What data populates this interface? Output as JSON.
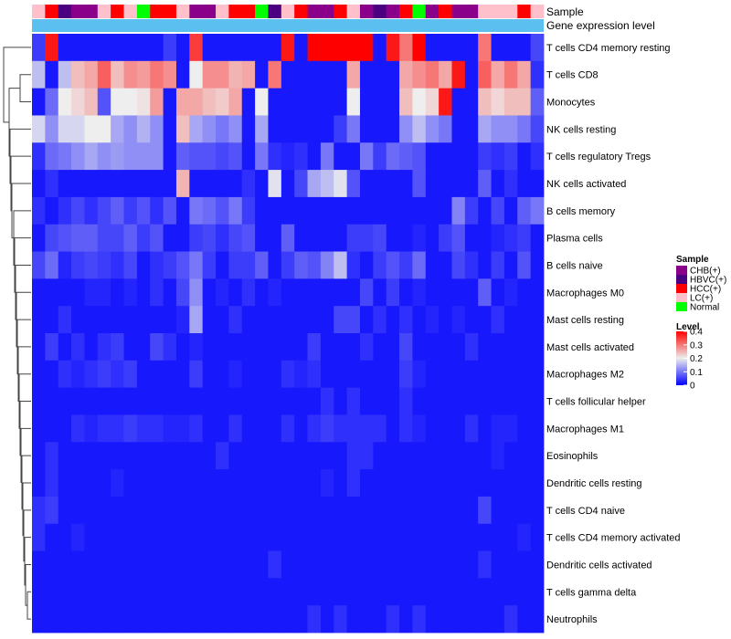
{
  "chart_data": {
    "type": "heatmap",
    "title": "",
    "annotation_tracks": [
      "Sample",
      "Gene expression level"
    ],
    "row_labels": [
      "T cells CD4 memory resting",
      "T cells CD8",
      "Monocytes",
      "NK cells resting",
      "T cells regulatory  Tregs",
      "NK cells activated",
      "B cells memory",
      "Plasma cells",
      "B cells naive",
      "Macrophages M0",
      "Mast cells resting",
      "Mast cells activated",
      "Macrophages M2",
      "T cells follicular helper",
      "Macrophages M1",
      "Eosinophils",
      "Dendritic cells resting",
      "T cells CD4 naive",
      "T cells CD4 memory activated",
      "Dendritic cells activated",
      "T cells gamma delta",
      "Neutrophils"
    ],
    "sample_groups": [
      "LC(+)",
      "HCC(+)",
      "HBVC(+)",
      "CHB(+)",
      "CHB(+)",
      "LC(+)",
      "HCC(+)",
      "LC(+)",
      "Normal",
      "HCC(+)",
      "HCC(+)",
      "LC(+)",
      "CHB(+)",
      "CHB(+)",
      "LC(+)",
      "HCC(+)",
      "HCC(+)",
      "Normal",
      "HBVC(+)",
      "LC(+)",
      "HCC(+)",
      "CHB(+)",
      "CHB(+)",
      "HCC(+)",
      "LC(+)",
      "CHB(+)",
      "HBVC(+)",
      "CHB(+)",
      "HCC(+)",
      "Normal",
      "CHB(+)",
      "HCC(+)",
      "CHB(+)",
      "CHB(+)",
      "LC(+)",
      "LC(+)",
      "LC(+)",
      "HCC(+)",
      "LC(+)"
    ],
    "values": [
      [
        0.05,
        0.38,
        0.02,
        0.02,
        0.02,
        0.02,
        0.02,
        0.02,
        0.02,
        0.02,
        0.05,
        0.02,
        0.35,
        0.02,
        0.02,
        0.02,
        0.02,
        0.02,
        0.02,
        0.38,
        0.02,
        0.4,
        0.4,
        0.4,
        0.4,
        0.4,
        0.02,
        0.38,
        0.3,
        0.4,
        0.02,
        0.02,
        0.02,
        0.02,
        0.3,
        0.02,
        0.02,
        0.02,
        0.06
      ],
      [
        0.16,
        0.02,
        0.16,
        0.24,
        0.26,
        0.32,
        0.24,
        0.28,
        0.27,
        0.3,
        0.28,
        0.02,
        0.2,
        0.28,
        0.28,
        0.25,
        0.26,
        0.02,
        0.3,
        0.02,
        0.02,
        0.02,
        0.02,
        0.02,
        0.26,
        0.02,
        0.02,
        0.02,
        0.26,
        0.28,
        0.3,
        0.26,
        0.38,
        0.02,
        0.32,
        0.26,
        0.3,
        0.26,
        0.04
      ],
      [
        0.02,
        0.09,
        0.2,
        0.22,
        0.24,
        0.07,
        0.2,
        0.2,
        0.21,
        0.27,
        0.02,
        0.26,
        0.26,
        0.24,
        0.23,
        0.26,
        0.02,
        0.2,
        0.02,
        0.02,
        0.02,
        0.02,
        0.02,
        0.02,
        0.2,
        0.02,
        0.02,
        0.02,
        0.24,
        0.2,
        0.22,
        0.38,
        0.02,
        0.02,
        0.24,
        0.22,
        0.24,
        0.24,
        0.08
      ],
      [
        0.18,
        0.12,
        0.18,
        0.18,
        0.2,
        0.2,
        0.14,
        0.12,
        0.15,
        0.12,
        0.02,
        0.24,
        0.14,
        0.12,
        0.1,
        0.12,
        0.02,
        0.14,
        0.02,
        0.02,
        0.02,
        0.02,
        0.02,
        0.05,
        0.1,
        0.02,
        0.02,
        0.02,
        0.12,
        0.16,
        0.12,
        0.1,
        0.02,
        0.02,
        0.14,
        0.12,
        0.12,
        0.1,
        0.06
      ],
      [
        0.04,
        0.09,
        0.1,
        0.12,
        0.14,
        0.12,
        0.13,
        0.12,
        0.12,
        0.12,
        0.02,
        0.08,
        0.07,
        0.07,
        0.06,
        0.07,
        0.02,
        0.1,
        0.04,
        0.03,
        0.04,
        0.02,
        0.1,
        0.02,
        0.02,
        0.1,
        0.05,
        0.09,
        0.08,
        0.07,
        0.02,
        0.02,
        0.02,
        0.02,
        0.05,
        0.04,
        0.05,
        0.02,
        0.04
      ],
      [
        0.02,
        0.04,
        0.02,
        0.02,
        0.02,
        0.02,
        0.02,
        0.02,
        0.02,
        0.02,
        0.02,
        0.25,
        0.02,
        0.02,
        0.02,
        0.02,
        0.04,
        0.02,
        0.19,
        0.02,
        0.06,
        0.14,
        0.16,
        0.19,
        0.07,
        0.02,
        0.02,
        0.02,
        0.02,
        0.07,
        0.02,
        0.02,
        0.02,
        0.02,
        0.08,
        0.02,
        0.04,
        0.02,
        0.02
      ],
      [
        0.04,
        0.02,
        0.04,
        0.06,
        0.04,
        0.06,
        0.08,
        0.05,
        0.07,
        0.04,
        0.07,
        0.02,
        0.1,
        0.09,
        0.07,
        0.1,
        0.05,
        0.02,
        0.02,
        0.02,
        0.02,
        0.02,
        0.02,
        0.02,
        0.02,
        0.02,
        0.02,
        0.02,
        0.02,
        0.02,
        0.02,
        0.02,
        0.11,
        0.05,
        0.02,
        0.06,
        0.02,
        0.08,
        0.1
      ],
      [
        0.02,
        0.06,
        0.07,
        0.08,
        0.08,
        0.06,
        0.06,
        0.08,
        0.05,
        0.07,
        0.02,
        0.02,
        0.05,
        0.06,
        0.04,
        0.06,
        0.07,
        0.02,
        0.02,
        0.08,
        0.02,
        0.02,
        0.02,
        0.02,
        0.05,
        0.05,
        0.06,
        0.02,
        0.02,
        0.03,
        0.02,
        0.05,
        0.07,
        0.02,
        0.02,
        0.03,
        0.04,
        0.05,
        0.02
      ],
      [
        0.06,
        0.09,
        0.03,
        0.05,
        0.06,
        0.05,
        0.04,
        0.06,
        0.02,
        0.04,
        0.05,
        0.07,
        0.1,
        0.05,
        0.02,
        0.05,
        0.05,
        0.08,
        0.02,
        0.05,
        0.08,
        0.07,
        0.11,
        0.16,
        0.04,
        0.02,
        0.05,
        0.07,
        0.05,
        0.09,
        0.02,
        0.02,
        0.06,
        0.04,
        0.02,
        0.05,
        0.02,
        0.07,
        0.02
      ],
      [
        0.02,
        0.02,
        0.02,
        0.02,
        0.03,
        0.03,
        0.02,
        0.03,
        0.02,
        0.04,
        0.02,
        0.06,
        0.12,
        0.02,
        0.03,
        0.02,
        0.04,
        0.02,
        0.03,
        0.02,
        0.02,
        0.02,
        0.02,
        0.02,
        0.02,
        0.06,
        0.02,
        0.05,
        0.02,
        0.03,
        0.02,
        0.02,
        0.02,
        0.02,
        0.08,
        0.02,
        0.03,
        0.02,
        0.02
      ],
      [
        0.02,
        0.02,
        0.04,
        0.02,
        0.02,
        0.02,
        0.02,
        0.02,
        0.02,
        0.02,
        0.02,
        0.03,
        0.14,
        0.02,
        0.02,
        0.04,
        0.02,
        0.02,
        0.02,
        0.02,
        0.02,
        0.02,
        0.02,
        0.06,
        0.06,
        0.02,
        0.04,
        0.02,
        0.04,
        0.02,
        0.03,
        0.02,
        0.03,
        0.02,
        0.02,
        0.04,
        0.02,
        0.02,
        0.02
      ],
      [
        0.02,
        0.05,
        0.02,
        0.04,
        0.02,
        0.04,
        0.05,
        0.02,
        0.02,
        0.06,
        0.04,
        0.02,
        0.03,
        0.02,
        0.02,
        0.02,
        0.02,
        0.02,
        0.02,
        0.02,
        0.02,
        0.05,
        0.02,
        0.02,
        0.02,
        0.04,
        0.02,
        0.02,
        0.06,
        0.02,
        0.02,
        0.02,
        0.02,
        0.04,
        0.02,
        0.02,
        0.02,
        0.02,
        0.02
      ],
      [
        0.02,
        0.02,
        0.04,
        0.03,
        0.04,
        0.05,
        0.04,
        0.05,
        0.02,
        0.02,
        0.02,
        0.02,
        0.05,
        0.02,
        0.02,
        0.03,
        0.02,
        0.02,
        0.02,
        0.04,
        0.03,
        0.04,
        0.02,
        0.02,
        0.02,
        0.02,
        0.02,
        0.02,
        0.05,
        0.03,
        0.02,
        0.02,
        0.02,
        0.02,
        0.02,
        0.02,
        0.02,
        0.02,
        0.02
      ],
      [
        0.02,
        0.02,
        0.02,
        0.02,
        0.02,
        0.02,
        0.02,
        0.02,
        0.02,
        0.02,
        0.02,
        0.02,
        0.02,
        0.02,
        0.02,
        0.02,
        0.02,
        0.02,
        0.02,
        0.02,
        0.02,
        0.02,
        0.04,
        0.02,
        0.04,
        0.02,
        0.02,
        0.02,
        0.04,
        0.02,
        0.02,
        0.02,
        0.02,
        0.02,
        0.02,
        0.02,
        0.02,
        0.02,
        0.02
      ],
      [
        0.02,
        0.02,
        0.02,
        0.04,
        0.03,
        0.04,
        0.04,
        0.05,
        0.04,
        0.04,
        0.03,
        0.03,
        0.04,
        0.02,
        0.02,
        0.04,
        0.02,
        0.02,
        0.02,
        0.04,
        0.02,
        0.04,
        0.05,
        0.04,
        0.04,
        0.04,
        0.04,
        0.02,
        0.04,
        0.03,
        0.02,
        0.02,
        0.02,
        0.04,
        0.02,
        0.03,
        0.03,
        0.02,
        0.02
      ],
      [
        0.02,
        0.04,
        0.02,
        0.02,
        0.02,
        0.02,
        0.02,
        0.02,
        0.02,
        0.02,
        0.02,
        0.02,
        0.02,
        0.02,
        0.04,
        0.02,
        0.02,
        0.02,
        0.02,
        0.02,
        0.02,
        0.02,
        0.02,
        0.02,
        0.04,
        0.04,
        0.02,
        0.02,
        0.02,
        0.02,
        0.02,
        0.02,
        0.02,
        0.02,
        0.02,
        0.03,
        0.02,
        0.02,
        0.02
      ],
      [
        0.02,
        0.04,
        0.02,
        0.02,
        0.02,
        0.02,
        0.03,
        0.02,
        0.02,
        0.02,
        0.02,
        0.02,
        0.02,
        0.02,
        0.02,
        0.02,
        0.02,
        0.02,
        0.02,
        0.02,
        0.02,
        0.02,
        0.03,
        0.02,
        0.04,
        0.02,
        0.02,
        0.02,
        0.02,
        0.02,
        0.02,
        0.02,
        0.02,
        0.02,
        0.02,
        0.02,
        0.02,
        0.02,
        0.02
      ],
      [
        0.04,
        0.05,
        0.02,
        0.02,
        0.02,
        0.02,
        0.02,
        0.02,
        0.02,
        0.02,
        0.02,
        0.02,
        0.02,
        0.02,
        0.02,
        0.02,
        0.02,
        0.02,
        0.02,
        0.02,
        0.02,
        0.02,
        0.02,
        0.02,
        0.02,
        0.02,
        0.02,
        0.02,
        0.02,
        0.02,
        0.02,
        0.02,
        0.02,
        0.02,
        0.06,
        0.02,
        0.02,
        0.02,
        0.02
      ],
      [
        0.04,
        0.02,
        0.02,
        0.03,
        0.02,
        0.02,
        0.02,
        0.02,
        0.02,
        0.02,
        0.02,
        0.02,
        0.02,
        0.02,
        0.02,
        0.02,
        0.02,
        0.02,
        0.02,
        0.02,
        0.02,
        0.02,
        0.02,
        0.02,
        0.02,
        0.02,
        0.02,
        0.02,
        0.02,
        0.02,
        0.02,
        0.02,
        0.02,
        0.02,
        0.02,
        0.02,
        0.02,
        0.03,
        0.02
      ],
      [
        0.02,
        0.02,
        0.02,
        0.02,
        0.02,
        0.02,
        0.02,
        0.02,
        0.02,
        0.02,
        0.02,
        0.02,
        0.02,
        0.02,
        0.02,
        0.02,
        0.02,
        0.02,
        0.04,
        0.02,
        0.02,
        0.02,
        0.02,
        0.02,
        0.02,
        0.02,
        0.02,
        0.02,
        0.02,
        0.02,
        0.02,
        0.02,
        0.02,
        0.02,
        0.04,
        0.02,
        0.02,
        0.02,
        0.02
      ],
      [
        0.02,
        0.02,
        0.02,
        0.02,
        0.02,
        0.02,
        0.02,
        0.02,
        0.02,
        0.02,
        0.02,
        0.02,
        0.02,
        0.02,
        0.02,
        0.02,
        0.02,
        0.02,
        0.02,
        0.02,
        0.02,
        0.02,
        0.02,
        0.02,
        0.02,
        0.02,
        0.02,
        0.02,
        0.02,
        0.02,
        0.02,
        0.02,
        0.02,
        0.02,
        0.02,
        0.02,
        0.02,
        0.02,
        0.02
      ],
      [
        0.02,
        0.02,
        0.02,
        0.02,
        0.02,
        0.02,
        0.02,
        0.02,
        0.02,
        0.02,
        0.02,
        0.02,
        0.02,
        0.02,
        0.02,
        0.02,
        0.02,
        0.02,
        0.02,
        0.02,
        0.02,
        0.04,
        0.02,
        0.04,
        0.02,
        0.02,
        0.02,
        0.04,
        0.02,
        0.04,
        0.02,
        0.02,
        0.02,
        0.02,
        0.02,
        0.02,
        0.04,
        0.02,
        0.02
      ]
    ],
    "colorscale": {
      "range": [
        0,
        0.4
      ],
      "stops": [
        {
          "value": 0,
          "color": "#0000ff"
        },
        {
          "value": 0.2,
          "color": "#eeeeee"
        },
        {
          "value": 0.4,
          "color": "#ff0000"
        }
      ]
    },
    "legend": {
      "position": "right",
      "sample": {
        "title": "Sample",
        "items": [
          {
            "label": "CHB(+)",
            "color": "#8b008b"
          },
          {
            "label": "HBVC(+)",
            "color": "#4b0082"
          },
          {
            "label": "HCC(+)",
            "color": "#ff0000"
          },
          {
            "label": "LC(+)",
            "color": "#ffc0cb"
          },
          {
            "label": "Normal",
            "color": "#00ff00"
          }
        ]
      },
      "level": {
        "title": "Level",
        "ticks": [
          "0.4",
          "0.3",
          "0.2",
          "0.1",
          "0"
        ],
        "tick_values": [
          0.4,
          0.3,
          0.2,
          0.1,
          0
        ]
      }
    },
    "gene_expression_color": "#5bc0f0"
  }
}
